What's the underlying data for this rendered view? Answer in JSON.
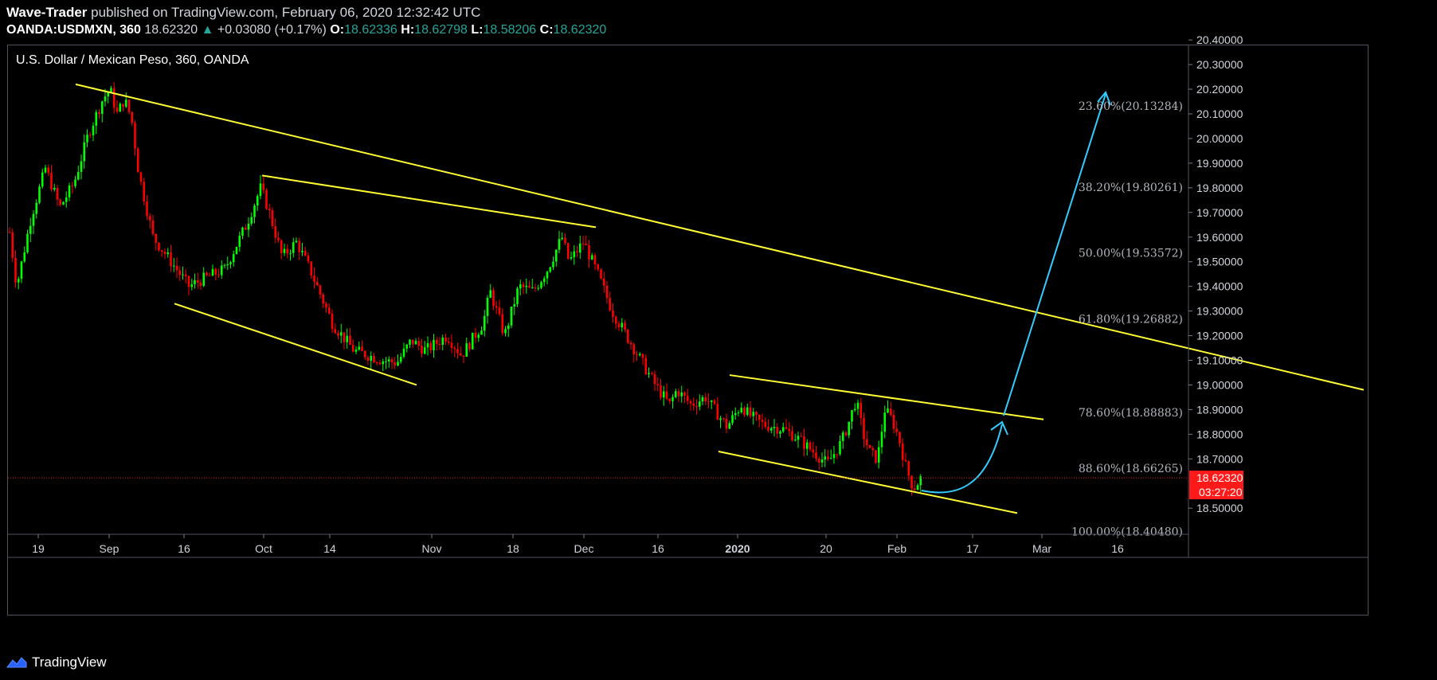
{
  "header": {
    "author": "Wave-Trader",
    "published": "published on TradingView.com, February 06, 2020 12:32:42 UTC",
    "symbol": "OANDA:USDMXN, 360",
    "last": "18.62320",
    "change": "+0.03080 (+0.17%)",
    "open_label": "O:",
    "open": "18.62336",
    "high_label": "H:",
    "high": "18.62798",
    "low_label": "L:",
    "low": "18.58206",
    "close_label": "C:",
    "close": "18.62320"
  },
  "chart_title": "U.S. Dollar / Mexican Peso, 360, OANDA",
  "footer": {
    "brand": "TradingView"
  },
  "colors": {
    "up": "#00ff00",
    "down": "#ff0000",
    "trendline": "#ffff33",
    "projection": "#33ccff",
    "price_tag": "#ff1a1a",
    "axis_text": "#d1d4dc",
    "fib_text": "#b2b5be"
  },
  "chart_data": {
    "type": "candlestick",
    "title": "U.S. Dollar / Mexican Peso, 360, OANDA",
    "ylim": [
      18.4,
      20.42
    ],
    "y_ticks": [
      "20.40000",
      "20.30000",
      "20.20000",
      "20.10000",
      "20.00000",
      "19.90000",
      "19.80000",
      "19.70000",
      "19.60000",
      "19.50000",
      "19.40000",
      "19.30000",
      "19.20000",
      "19.10000",
      "19.00000",
      "18.90000",
      "18.80000",
      "18.70000",
      "18.50000"
    ],
    "x_ticks": [
      "19",
      "Sep",
      "16",
      "Oct",
      "14",
      "Nov",
      "18",
      "Dec",
      "16",
      "2020",
      "20",
      "Feb",
      "17",
      "Mar",
      "16"
    ],
    "bold_x_ticks": [
      "2020"
    ],
    "current_price": {
      "label": "18.62320",
      "value": 18.6232,
      "countdown": "03:27:20"
    },
    "fib_levels": [
      {
        "label": "23.60%(20.13284)",
        "value": 20.13284
      },
      {
        "label": "38.20%(19.80261)",
        "value": 19.80261
      },
      {
        "label": "50.00%(19.53572)",
        "value": 19.53572
      },
      {
        "label": "61.80%(19.26882)",
        "value": 19.26882
      },
      {
        "label": "78.60%(18.88883)",
        "value": 18.88883
      },
      {
        "label": "88.60%(18.66265)",
        "value": 18.66265
      },
      {
        "label": "100.00%(18.40480)",
        "value": 18.4048
      }
    ],
    "price_waypoints": [
      [
        0,
        19.62
      ],
      [
        1,
        19.4
      ],
      [
        3,
        19.68
      ],
      [
        5,
        19.88
      ],
      [
        7,
        19.72
      ],
      [
        9,
        19.82
      ],
      [
        11,
        20.02
      ],
      [
        13,
        20.16
      ],
      [
        14,
        20.2
      ],
      [
        15,
        20.1
      ],
      [
        16,
        20.16
      ],
      [
        17,
        20.08
      ],
      [
        18,
        19.86
      ],
      [
        20,
        19.6
      ],
      [
        22,
        19.52
      ],
      [
        25,
        19.4
      ],
      [
        27,
        19.43
      ],
      [
        30,
        19.47
      ],
      [
        33,
        19.65
      ],
      [
        35,
        19.8
      ],
      [
        36,
        19.72
      ],
      [
        38,
        19.52
      ],
      [
        40,
        19.58
      ],
      [
        42,
        19.46
      ],
      [
        45,
        19.25
      ],
      [
        48,
        19.14
      ],
      [
        52,
        19.1
      ],
      [
        54,
        19.09
      ],
      [
        56,
        19.18
      ],
      [
        58,
        19.14
      ],
      [
        61,
        19.2
      ],
      [
        63,
        19.12
      ],
      [
        66,
        19.25
      ],
      [
        67,
        19.38
      ],
      [
        69,
        19.2
      ],
      [
        71,
        19.4
      ],
      [
        73,
        19.38
      ],
      [
        75,
        19.47
      ],
      [
        77,
        19.6
      ],
      [
        78,
        19.5
      ],
      [
        80,
        19.58
      ],
      [
        82,
        19.45
      ],
      [
        84,
        19.3
      ],
      [
        86,
        19.2
      ],
      [
        88,
        19.1
      ],
      [
        90,
        19.0
      ],
      [
        92,
        18.92
      ],
      [
        93,
        18.98
      ],
      [
        95,
        18.92
      ],
      [
        97,
        18.95
      ],
      [
        99,
        18.87
      ],
      [
        100,
        18.83
      ],
      [
        102,
        18.92
      ],
      [
        103,
        18.88
      ],
      [
        105,
        18.84
      ],
      [
        108,
        18.82
      ],
      [
        110,
        18.78
      ],
      [
        112,
        18.73
      ],
      [
        114,
        18.68
      ],
      [
        116,
        18.77
      ],
      [
        117,
        18.85
      ],
      [
        118,
        18.94
      ],
      [
        119,
        18.8
      ],
      [
        120,
        18.72
      ],
      [
        121,
        18.7
      ],
      [
        122,
        18.9
      ],
      [
        123,
        18.86
      ],
      [
        124,
        18.78
      ],
      [
        125,
        18.66
      ],
      [
        126,
        18.58
      ],
      [
        127,
        18.62
      ]
    ],
    "trendlines": [
      {
        "name": "main-resistance",
        "points": [
          [
            95,
            20.22
          ],
          [
            1712,
            18.98
          ]
        ]
      },
      {
        "name": "secondary-resistance",
        "points": [
          [
            329,
            19.85
          ],
          [
            748,
            19.64
          ]
        ]
      },
      {
        "name": "support-1",
        "points": [
          [
            219,
            19.33
          ],
          [
            523,
            19.0
          ]
        ]
      },
      {
        "name": "channel-top",
        "points": [
          [
            916,
            19.04
          ],
          [
            1310,
            18.86
          ]
        ]
      },
      {
        "name": "channel-bottom",
        "points": [
          [
            902,
            18.73
          ],
          [
            1277,
            18.48
          ]
        ]
      }
    ]
  }
}
